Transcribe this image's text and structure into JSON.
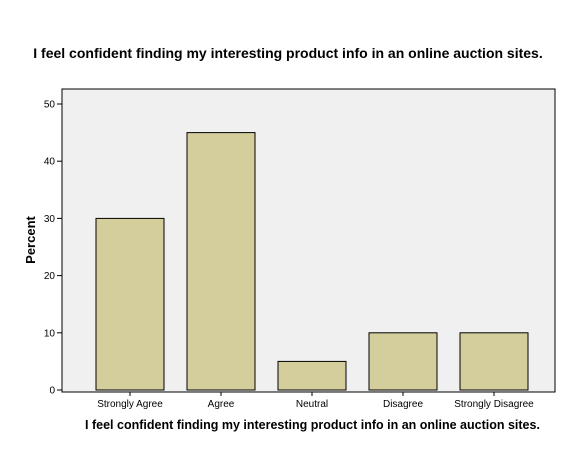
{
  "chart_data": {
    "type": "bar",
    "title": "I feel confident finding my interesting product info in an online auction sites.",
    "xlabel": "I feel confident finding my interesting product info in an online auction sites.",
    "ylabel": "Percent",
    "categories": [
      "Strongly Agree",
      "Agree",
      "Neutral",
      "Disagree",
      "Strongly Disagree"
    ],
    "values": [
      30,
      45,
      5,
      10,
      10
    ],
    "ylim": [
      0,
      50
    ],
    "yticks": [
      0,
      10,
      20,
      30,
      40,
      50
    ],
    "grid": false,
    "colors": {
      "bar_fill": "#d3ce9b",
      "bar_stroke": "#000000",
      "plot_background": "#f0f0f0"
    }
  }
}
